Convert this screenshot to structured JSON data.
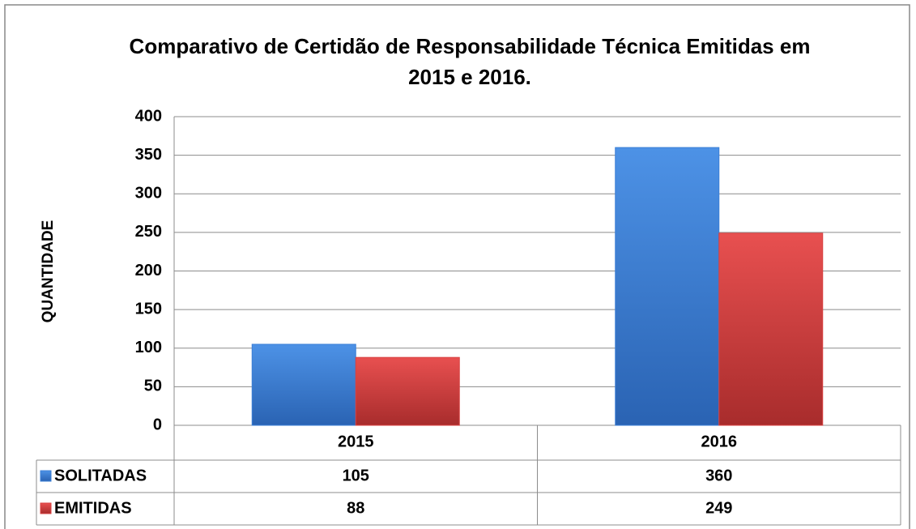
{
  "chart_data": {
    "type": "bar",
    "title": "Comparativo de Certidão de Responsabilidade Técnica Emitidas em 2015 e 2016.",
    "y_label": "QUANTIDADE",
    "categories": [
      "2015",
      "2016"
    ],
    "series": [
      {
        "name": "SOLITADAS",
        "color": "#3b7fd6",
        "values": [
          105,
          360
        ]
      },
      {
        "name": "EMITIDAS",
        "color": "#d94141",
        "values": [
          88,
          249
        ]
      }
    ],
    "ylim": [
      0,
      400
    ],
    "yticks": [
      0,
      50,
      100,
      150,
      200,
      250,
      300,
      350,
      400
    ],
    "grid": true,
    "data_table": true
  }
}
